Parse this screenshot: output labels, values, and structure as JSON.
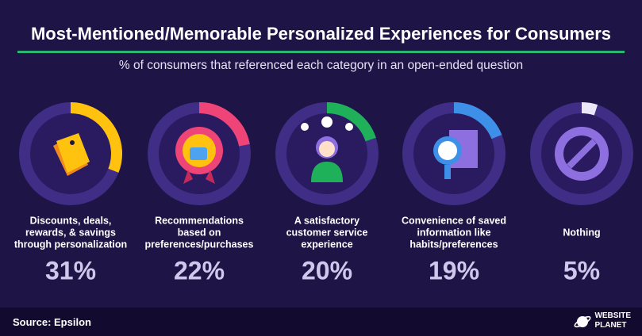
{
  "chart_data": {
    "type": "gauge",
    "title": "Most-Mentioned/Memorable Personalized Experiences for Consumers",
    "subtitle": "% of consumers that referenced each category in an open-ended question",
    "categories": [
      "Discounts, deals,\nrewards, & savings\nthrough personalization",
      "Recommendations\nbased on\npreferences/purchases",
      "A satisfactory\ncustomer service\nexperience",
      "Convenience of saved\ninformation like\nhabits/preferences",
      "Nothing"
    ],
    "values": [
      31,
      22,
      20,
      19,
      5
    ],
    "value_labels": [
      "31%",
      "22%",
      "20%",
      "19%",
      "5%"
    ],
    "colors": [
      "#ffc20e",
      "#ef4477",
      "#1fb15a",
      "#3d8fe8",
      "#ebe7f7"
    ],
    "ylim": [
      0,
      100
    ],
    "source": "Source: Epsilon",
    "brand": [
      "WEBSITE",
      "PLANET"
    ]
  }
}
